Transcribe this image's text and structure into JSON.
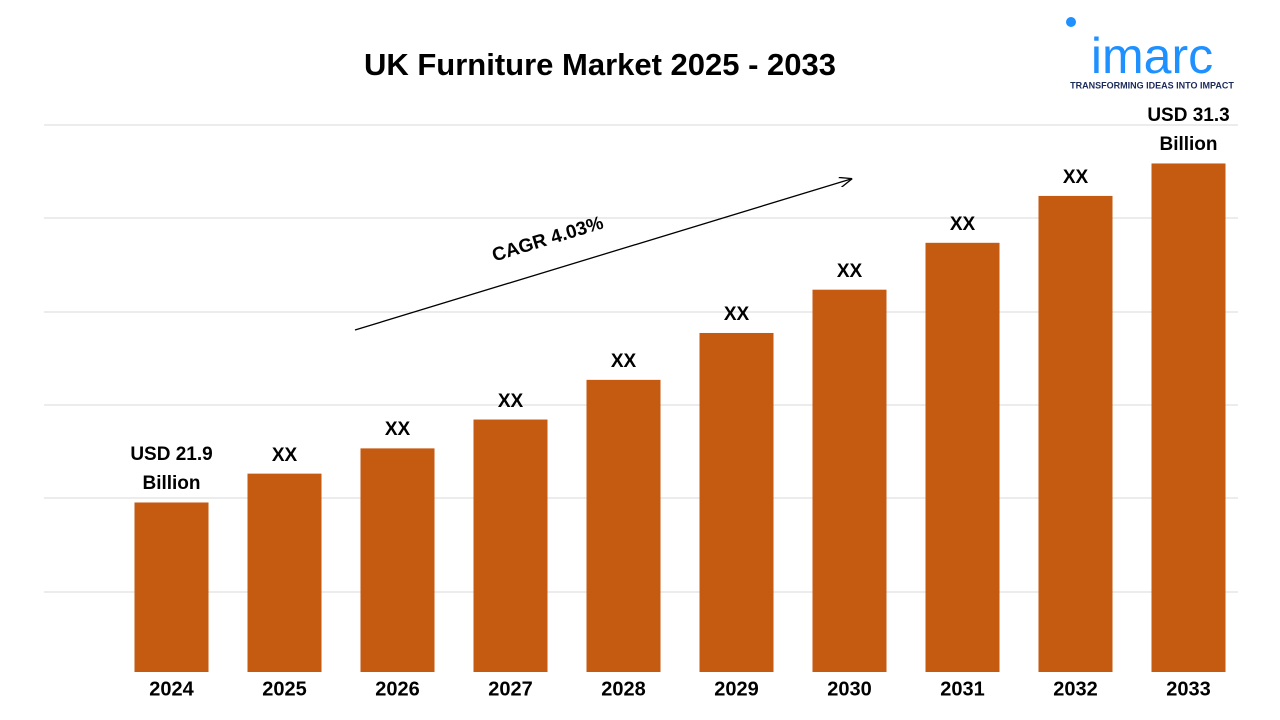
{
  "chart_data": {
    "type": "bar",
    "title": "UK Furniture Market 2025 - 2033",
    "categories": [
      "2024",
      "2025",
      "2026",
      "2027",
      "2028",
      "2029",
      "2030",
      "2031",
      "2032",
      "2033"
    ],
    "values": [
      21.9,
      22.7,
      23.4,
      24.2,
      25.3,
      26.6,
      27.8,
      29.1,
      30.4,
      31.3
    ],
    "value_labels": [
      "USD 21.9 Billion",
      "XX",
      "XX",
      "XX",
      "XX",
      "XX",
      "XX",
      "XX",
      "XX",
      "USD 31.3 Billion"
    ],
    "color": "#c55a11",
    "ylim": [
      17.2,
      32.2
    ],
    "annotations": [
      "CAGR 4.03%"
    ]
  },
  "logo": {
    "text": "imarc",
    "tagline": "TRANSFORMING IDEAS INTO IMPACT"
  }
}
